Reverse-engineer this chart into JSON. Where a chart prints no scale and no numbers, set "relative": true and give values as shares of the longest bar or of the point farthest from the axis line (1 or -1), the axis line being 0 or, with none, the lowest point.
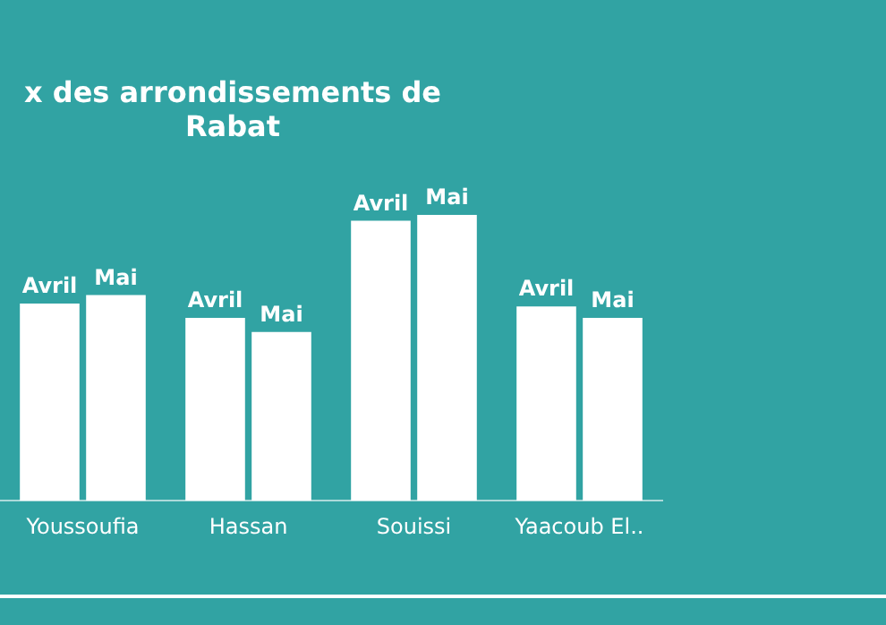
{
  "chart_data": {
    "type": "bar",
    "title": "x des arrondissements de Rabat",
    "categories": [
      "Youssoufia",
      "Hassan",
      "Souissi",
      "Yaacoub El.."
    ],
    "relative": true,
    "legend": false,
    "grid": false,
    "series": [
      {
        "name": "Avril",
        "color": "#ffffff",
        "values": [
          0.69,
          0.64,
          0.98,
          0.68
        ]
      },
      {
        "name": "Mai",
        "color": "#ffffff",
        "values": [
          0.72,
          0.59,
          1,
          0.64
        ]
      }
    ]
  }
}
